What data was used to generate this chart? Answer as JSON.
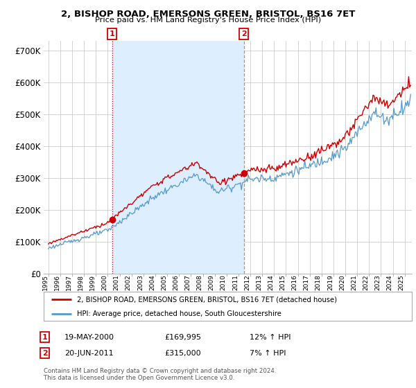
{
  "title": "2, BISHOP ROAD, EMERSONS GREEN, BRISTOL, BS16 7ET",
  "subtitle": "Price paid vs. HM Land Registry's House Price Index (HPI)",
  "legend_label_red": "2, BISHOP ROAD, EMERSONS GREEN, BRISTOL, BS16 7ET (detached house)",
  "legend_label_blue": "HPI: Average price, detached house, South Gloucestershire",
  "annotation1_date": "19-MAY-2000",
  "annotation1_price": "£169,995",
  "annotation1_hpi": "12% ↑ HPI",
  "annotation2_date": "20-JUN-2011",
  "annotation2_price": "£315,000",
  "annotation2_hpi": "7% ↑ HPI",
  "footer": "Contains HM Land Registry data © Crown copyright and database right 2024.\nThis data is licensed under the Open Government Licence v3.0.",
  "red_color": "#cc0000",
  "blue_color": "#5599cc",
  "shade_color": "#ddeeff",
  "background_color": "#ffffff",
  "grid_color": "#cccccc",
  "ylim": [
    0,
    730000
  ],
  "yticks": [
    0,
    100000,
    200000,
    300000,
    400000,
    500000,
    600000,
    700000
  ],
  "xlim_start": 1994.6,
  "xlim_end": 2025.6,
  "sale1_x": 2000.37,
  "sale1_y": 169995,
  "sale2_x": 2011.46,
  "sale2_y": 315000,
  "n_points": 367
}
